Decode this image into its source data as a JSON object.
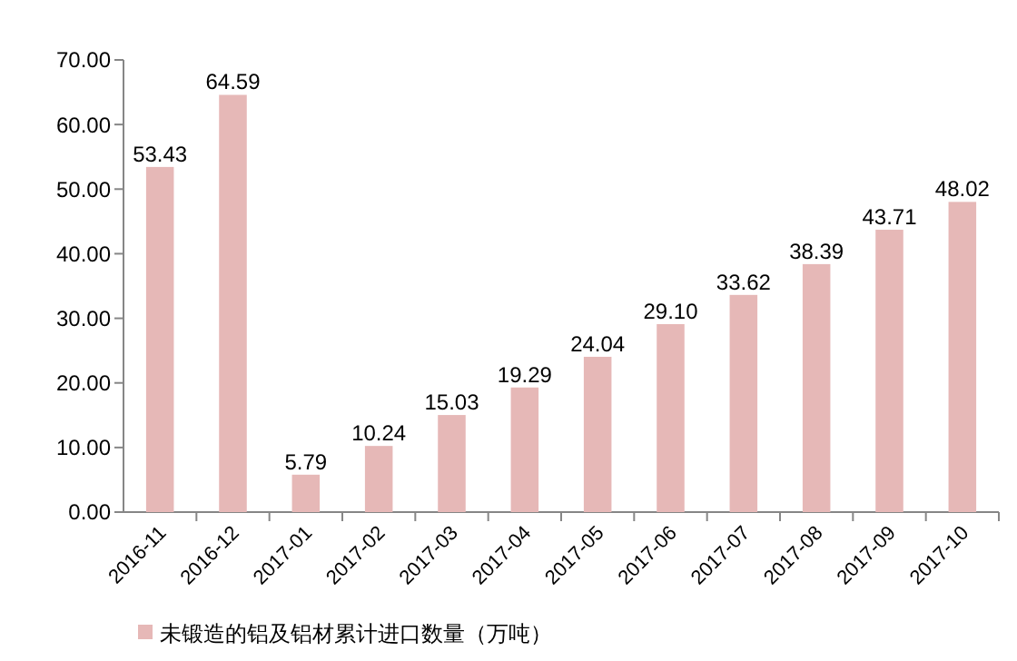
{
  "chart_data": {
    "type": "bar",
    "categories": [
      "2016-11",
      "2016-12",
      "2017-01",
      "2017-02",
      "2017-03",
      "2017-04",
      "2017-05",
      "2017-06",
      "2017-07",
      "2017-08",
      "2017-09",
      "2017-10"
    ],
    "series": [
      {
        "name": "未锻造的铝及铝材累计进口数量（万吨）",
        "color": "#e6b8b7",
        "values": [
          53.43,
          64.59,
          5.79,
          10.24,
          15.03,
          19.29,
          24.04,
          29.1,
          33.62,
          38.39,
          43.71,
          48.02
        ]
      }
    ],
    "ylim": [
      0,
      70
    ],
    "yticks": [
      {
        "value": 0,
        "label": "0.00"
      },
      {
        "value": 10,
        "label": "10.00"
      },
      {
        "value": 20,
        "label": "20.00"
      },
      {
        "value": 30,
        "label": "30.00"
      },
      {
        "value": 40,
        "label": "40.00"
      },
      {
        "value": 50,
        "label": "50.00"
      },
      {
        "value": 60,
        "label": "60.00"
      },
      {
        "value": 70,
        "label": "70.00"
      }
    ],
    "value_labels": [
      "53.43",
      "64.59",
      "5.79",
      "10.24",
      "15.03",
      "19.29",
      "24.04",
      "29.10",
      "33.62",
      "38.39",
      "43.71",
      "48.02"
    ],
    "legend": "bottom",
    "grid": false
  }
}
